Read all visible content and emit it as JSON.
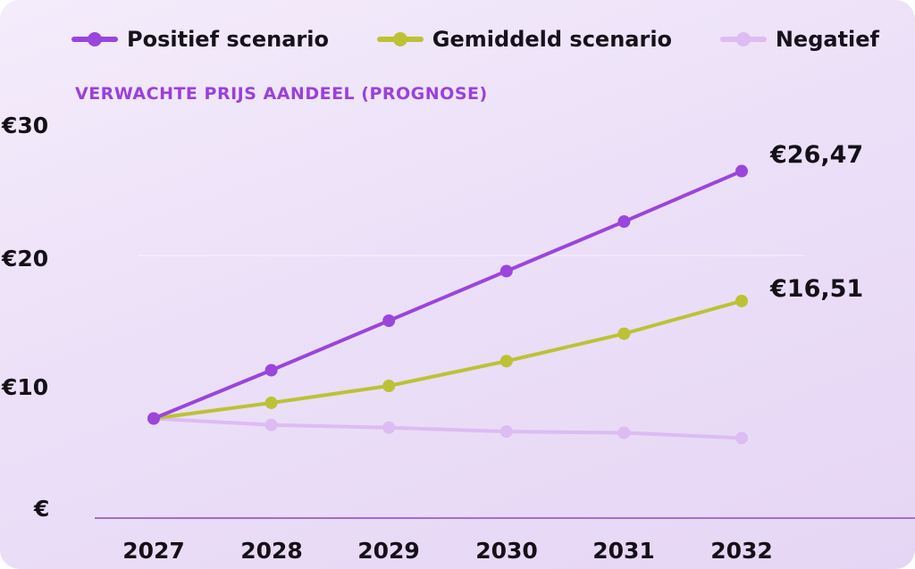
{
  "chart_data": {
    "type": "line",
    "subtitle": "VERWACHTE PRIJS AANDEEL (PROGNOSE)",
    "categories": [
      "2027",
      "2028",
      "2029",
      "2030",
      "2031",
      "2032"
    ],
    "y_tick_labels": [
      "€30",
      "€20",
      "€10",
      "€"
    ],
    "y_tick_values": [
      30,
      20,
      10,
      0
    ],
    "ylim": [
      0,
      30
    ],
    "grid": false,
    "legend_position": "top",
    "series": [
      {
        "name": "Positief scenario",
        "color": "#9a45dc",
        "values": [
          7.5,
          11.2,
          15.0,
          18.8,
          22.6,
          26.47
        ],
        "end_label": "€26,47"
      },
      {
        "name": "Gemiddeld scenario",
        "color": "#bcc234",
        "values": [
          7.5,
          8.7,
          10.0,
          11.9,
          14.0,
          16.51
        ],
        "end_label": "€16,51"
      },
      {
        "name": "Negatief",
        "color": "#dcbcf2",
        "values": [
          7.5,
          7.0,
          6.8,
          6.5,
          6.4,
          6.0
        ]
      }
    ]
  }
}
